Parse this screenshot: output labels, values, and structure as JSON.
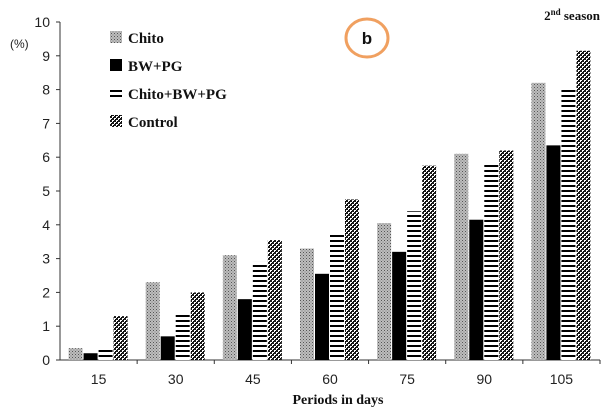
{
  "chart_data": {
    "type": "bar",
    "title": "",
    "panel_label": "b",
    "season_label": {
      "prefix": "2",
      "sup": "nd",
      "suffix": " season"
    },
    "ylabel": "(%)",
    "xlabel": "Periods in days",
    "categories": [
      "15",
      "30",
      "45",
      "60",
      "75",
      "90",
      "105"
    ],
    "ylim": [
      0,
      10
    ],
    "yticks": [
      0,
      1,
      2,
      3,
      4,
      5,
      6,
      7,
      8,
      9,
      10
    ],
    "grid": false,
    "legend_position": "top-left",
    "series": [
      {
        "name": "Chito",
        "pattern": "dots-gray",
        "values": [
          0.35,
          2.3,
          3.1,
          3.3,
          4.05,
          6.1,
          8.2
        ]
      },
      {
        "name": "BW+PG",
        "pattern": "solid-black",
        "values": [
          0.2,
          0.7,
          1.8,
          2.55,
          3.2,
          4.15,
          6.35
        ]
      },
      {
        "name": "Chito+BW+PG",
        "pattern": "horizontal-lines",
        "values": [
          0.3,
          1.4,
          2.9,
          3.7,
          4.4,
          5.85,
          8.05
        ]
      },
      {
        "name": "Control",
        "pattern": "checker-dense",
        "values": [
          1.3,
          2.0,
          3.55,
          4.75,
          5.75,
          6.2,
          9.15
        ]
      }
    ],
    "colors": {
      "accent_circle": "#f0a060",
      "axis": "#333333",
      "black": "#000000"
    }
  }
}
